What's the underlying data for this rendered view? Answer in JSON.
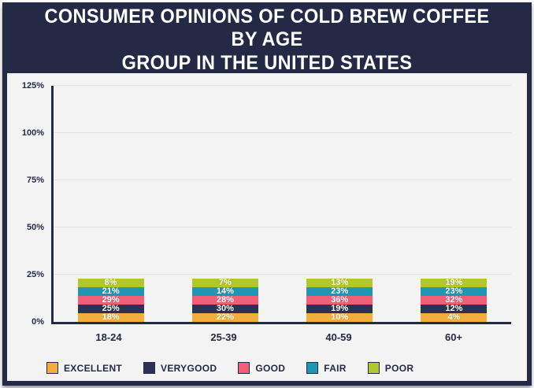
{
  "header": {
    "title_line1": "CONSUMER OPINIONS OF COLD BREW COFFEE BY AGE",
    "title_line2": "GROUP IN THE UNITED STATES"
  },
  "theme": {
    "navy": "#242A46",
    "background": "#F3F3F4"
  },
  "chart_data": {
    "type": "bar",
    "stacked": true,
    "title": "Consumer opinions of cold brew coffee by age group in the United States",
    "categories": [
      "18-24",
      "25-39",
      "40-59",
      "60+"
    ],
    "series": [
      {
        "name": "EXCELLENT",
        "color": "#F2AE3C",
        "values": [
          18,
          22,
          10,
          4
        ]
      },
      {
        "name": "VERYGOOD",
        "color": "#2B3256",
        "values": [
          25,
          30,
          19,
          12
        ]
      },
      {
        "name": "GOOD",
        "color": "#F05F76",
        "values": [
          29,
          28,
          36,
          32
        ]
      },
      {
        "name": "FAIR",
        "color": "#1F96B4",
        "values": [
          21,
          14,
          23,
          23
        ]
      },
      {
        "name": "POOR",
        "color": "#B2C72C",
        "values": [
          8,
          7,
          13,
          19
        ]
      }
    ],
    "value_label_suffix": "%",
    "ylim": [
      0,
      125
    ],
    "yticks": [
      "0%",
      "25%",
      "50%",
      "75%",
      "100%",
      "125%"
    ],
    "grid": true,
    "legend_position": "bottom"
  }
}
